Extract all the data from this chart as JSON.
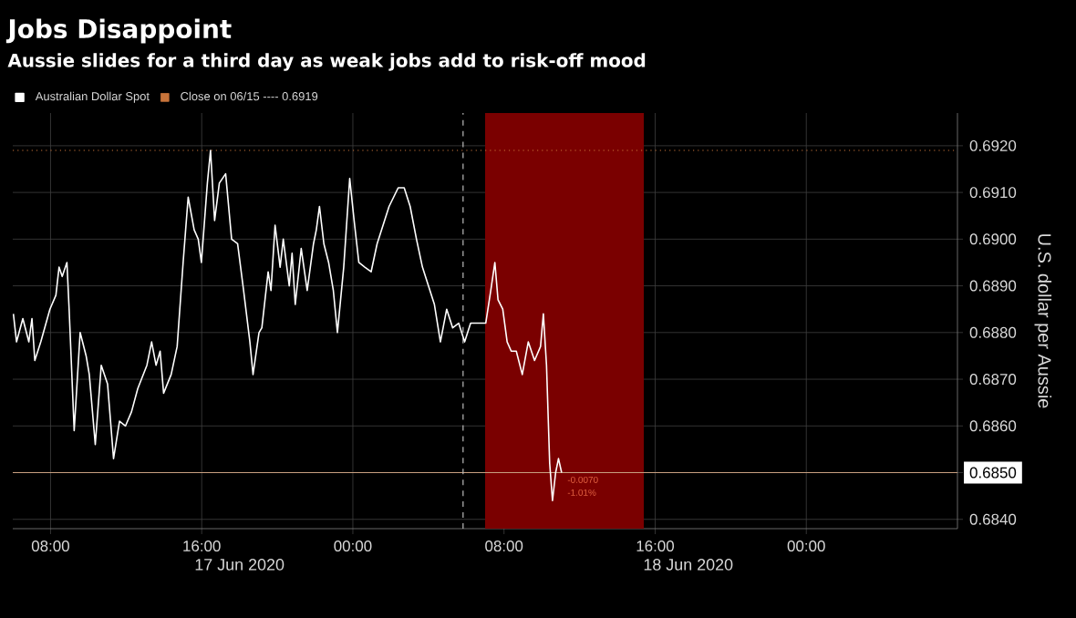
{
  "chart_data": {
    "type": "line",
    "title": "Jobs Disappoint",
    "subtitle": "Aussie slides for a third day as weak jobs add to risk-off mood",
    "ylabel": "U.S. dollar per Aussie",
    "xlim": [
      "2020-06-17T06:00",
      "2020-06-19T08:00"
    ],
    "xticks": [
      {
        "value": "2020-06-17T08:00",
        "label": "08:00"
      },
      {
        "value": "2020-06-17T16:00",
        "label": "16:00"
      },
      {
        "value": "2020-06-18T00:00",
        "label": "00:00"
      },
      {
        "value": "2020-06-18T08:00",
        "label": "08:00"
      },
      {
        "value": "2020-06-18T16:00",
        "label": "16:00"
      },
      {
        "value": "2020-06-19T00:00",
        "label": "00:00"
      }
    ],
    "ylim": [
      0.6838,
      0.6927
    ],
    "yticks": [
      {
        "value": 0.684,
        "label": "0.6840"
      },
      {
        "value": 0.685,
        "label": "0.6850"
      },
      {
        "value": 0.686,
        "label": "0.6860"
      },
      {
        "value": 0.687,
        "label": "0.6870"
      },
      {
        "value": 0.688,
        "label": "0.6880"
      },
      {
        "value": 0.689,
        "label": "0.6890"
      },
      {
        "value": 0.69,
        "label": "0.6900"
      },
      {
        "value": 0.691,
        "label": "0.6910"
      },
      {
        "value": 0.692,
        "label": "0.6920"
      }
    ],
    "grid": true,
    "legend": "top left",
    "marker": "none",
    "line_style": "solid",
    "series": [
      {
        "name": "Australian Dollar Spot",
        "color": "#ffffff",
        "x": [
          "2020-06-17T06:02",
          "2020-06-17T06:12",
          "2020-06-17T06:32",
          "2020-06-17T06:51",
          "2020-06-17T07:01",
          "2020-06-17T07:10",
          "2020-06-17T07:29",
          "2020-06-17T07:58",
          "2020-06-17T08:17",
          "2020-06-17T08:27",
          "2020-06-17T08:37",
          "2020-06-17T08:52",
          "2020-06-17T08:59",
          "2020-06-17T09:15",
          "2020-06-17T09:34",
          "2020-06-17T09:53",
          "2020-06-17T10:03",
          "2020-06-17T10:22",
          "2020-06-17T10:41",
          "2020-06-17T11:01",
          "2020-06-17T11:20",
          "2020-06-17T11:39",
          "2020-06-17T11:58",
          "2020-06-17T12:17",
          "2020-06-17T12:37",
          "2020-06-17T13:06",
          "2020-06-17T13:21",
          "2020-06-17T13:35",
          "2020-06-17T13:48",
          "2020-06-17T13:59",
          "2020-06-17T14:23",
          "2020-06-17T14:42",
          "2020-06-17T15:01",
          "2020-06-17T15:17",
          "2020-06-17T15:36",
          "2020-06-17T15:49",
          "2020-06-17T15:59",
          "2020-06-17T16:18",
          "2020-06-17T16:28",
          "2020-06-17T16:41",
          "2020-06-17T16:56",
          "2020-06-17T17:16",
          "2020-06-17T17:35",
          "2020-06-17T17:54",
          "2020-06-17T18:13",
          "2020-06-17T18:33",
          "2020-06-17T18:43",
          "2020-06-17T19:02",
          "2020-06-17T19:11",
          "2020-06-17T19:31",
          "2020-06-17T19:40",
          "2020-06-17T19:53",
          "2020-06-17T20:09",
          "2020-06-17T20:19",
          "2020-06-17T20:38",
          "2020-06-17T20:47",
          "2020-06-17T20:57",
          "2020-06-17T21:16",
          "2020-06-17T21:35",
          "2020-06-17T21:55",
          "2020-06-17T22:04",
          "2020-06-17T22:14",
          "2020-06-17T22:28",
          "2020-06-17T22:43",
          "2020-06-17T22:58",
          "2020-06-17T23:11",
          "2020-06-17T23:31",
          "2020-06-17T23:50",
          "2020-06-18T00:04",
          "2020-06-18T00:19",
          "2020-06-18T00:38",
          "2020-06-18T00:58",
          "2020-06-18T01:17",
          "2020-06-18T01:36",
          "2020-06-18T01:55",
          "2020-06-18T02:24",
          "2020-06-18T02:43",
          "2020-06-18T03:02",
          "2020-06-18T03:22",
          "2020-06-18T03:41",
          "2020-06-18T04:00",
          "2020-06-18T04:19",
          "2020-06-18T04:38",
          "2020-06-18T04:58",
          "2020-06-18T05:17",
          "2020-06-18T05:36",
          "2020-06-18T05:55",
          "2020-06-18T06:14",
          "2020-06-18T06:43",
          "2020-06-18T07:02",
          "2020-06-18T07:18",
          "2020-06-18T07:31",
          "2020-06-18T07:41",
          "2020-06-18T07:56",
          "2020-06-18T08:10",
          "2020-06-18T08:23",
          "2020-06-18T08:39",
          "2020-06-18T08:58",
          "2020-06-18T09:17",
          "2020-06-18T09:37",
          "2020-06-18T09:56",
          "2020-06-18T10:05",
          "2020-06-18T10:15",
          "2020-06-18T10:25",
          "2020-06-18T10:34",
          "2020-06-18T10:44",
          "2020-06-18T10:53",
          "2020-06-18T11:03"
        ],
        "values": [
          0.6884,
          0.6878,
          0.6883,
          0.6878,
          0.6883,
          0.6874,
          0.6878,
          0.6885,
          0.6888,
          0.6894,
          0.6892,
          0.6895,
          0.6885,
          0.6859,
          0.688,
          0.6875,
          0.6871,
          0.6856,
          0.6873,
          0.6869,
          0.6853,
          0.6861,
          0.686,
          0.6863,
          0.6868,
          0.6873,
          0.6878,
          0.6873,
          0.6876,
          0.6867,
          0.6871,
          0.6877,
          0.6895,
          0.6909,
          0.6902,
          0.69,
          0.6895,
          0.6912,
          0.6919,
          0.6904,
          0.6912,
          0.6914,
          0.69,
          0.6899,
          0.6889,
          0.6878,
          0.6871,
          0.688,
          0.6881,
          0.6893,
          0.6889,
          0.6903,
          0.6894,
          0.69,
          0.689,
          0.6897,
          0.6886,
          0.6898,
          0.6889,
          0.6899,
          0.6902,
          0.6907,
          0.6899,
          0.6895,
          0.6889,
          0.688,
          0.6894,
          0.6913,
          0.6904,
          0.6895,
          0.6894,
          0.6893,
          0.6899,
          0.6903,
          0.6907,
          0.6911,
          0.6911,
          0.6907,
          0.69,
          0.6894,
          0.689,
          0.6886,
          0.6878,
          0.6885,
          0.6881,
          0.6882,
          0.6878,
          0.6882,
          0.6882,
          0.6882,
          0.6889,
          0.6895,
          0.6887,
          0.6885,
          0.6878,
          0.6876,
          0.6876,
          0.6871,
          0.6878,
          0.6874,
          0.6877,
          0.6884,
          0.6873,
          0.6852,
          0.6844,
          0.685,
          0.6853,
          0.685
        ]
      }
    ],
    "ref_lines": [
      {
        "axis": "y",
        "value": 0.6919,
        "label": "Close on 06/15 ---- 0.6919",
        "color": "#c8743a",
        "line_style": "dotted"
      },
      {
        "axis": "y",
        "value": 0.685,
        "color": "#c8a080",
        "line_style": "solid"
      },
      {
        "axis": "x",
        "value": "2020-06-18T05:50",
        "color": "#bbbbbb",
        "line_style": "dashed"
      }
    ],
    "bands": [
      {
        "axis": "x",
        "from": "2020-06-18T07:00",
        "to": "2020-06-18T15:24",
        "color": "#7a0000"
      }
    ],
    "annotations": [
      "-0.0070",
      "-1.01%",
      "17 Jun 2020",
      "18 Jun 2020"
    ]
  }
}
